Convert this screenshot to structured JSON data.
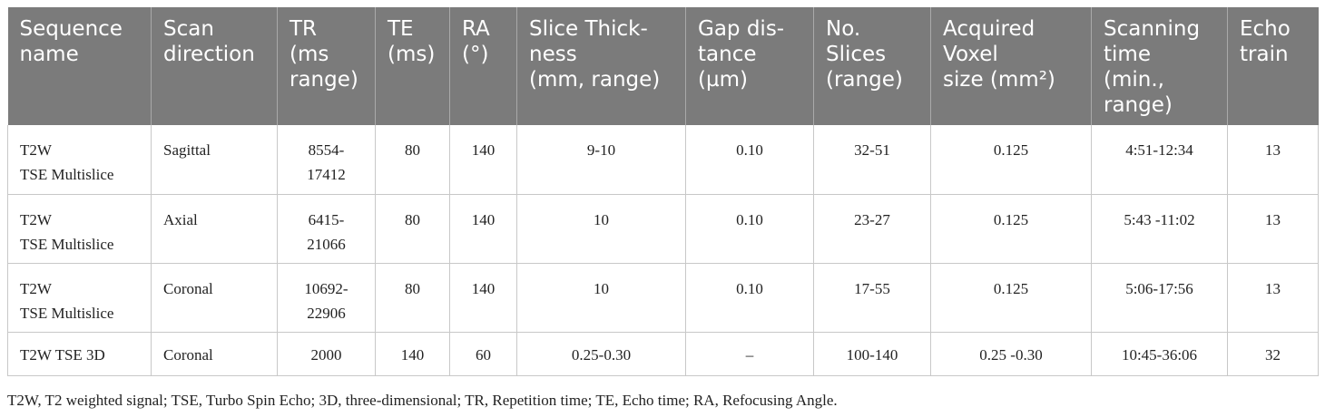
{
  "table": {
    "headers": [
      "Sequence\nname",
      "Scan\ndirection",
      "TR\n(ms\nrange)",
      "TE\n(ms)",
      "RA\n(°)",
      "Slice Thick-\nness\n(mm, range)",
      "Gap dis-\ntance\n(µm)",
      "No.\nSlices\n(range)",
      "Acquired\nVoxel\nsize (mm²)",
      "Scanning\ntime\n(min.,\nrange)",
      "Echo\ntrain"
    ],
    "rows": [
      [
        "T2W\nTSE Multislice",
        "Sagittal",
        "8554-\n17412",
        "80",
        "140",
        "9-10",
        "0.10",
        "32-51",
        "0.125",
        "4:51-12:34",
        "13"
      ],
      [
        "T2W\nTSE Multislice",
        "Axial",
        "6415-\n21066",
        "80",
        "140",
        "10",
        "0.10",
        "23-27",
        "0.125",
        "5:43 -11:02",
        "13"
      ],
      [
        "T2W\nTSE Multislice",
        "Coronal",
        "10692-\n22906",
        "80",
        "140",
        "10",
        "0.10",
        "17-55",
        "0.125",
        "5:06-17:56",
        "13"
      ],
      [
        "T2W TSE 3D",
        "Coronal",
        "2000",
        "140",
        "60",
        "0.25-0.30",
        "–",
        "100-140",
        "0.25 -0.30",
        "10:45-36:06",
        "32"
      ]
    ]
  },
  "footnote": "T2W, T2 weighted signal; TSE, Turbo Spin Echo; 3D, three-dimensional; TR, Repetition time; TE, Echo time; RA, Refocusing Angle."
}
